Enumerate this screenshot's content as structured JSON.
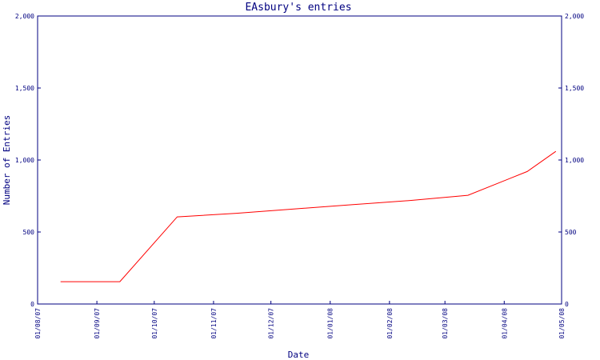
{
  "chart_data": {
    "type": "line",
    "title": "EAsbury's entries",
    "xlabel": "Date",
    "ylabel": "Number of Entries",
    "x_ticks": [
      "01/08/07",
      "01/09/07",
      "01/10/07",
      "01/11/07",
      "01/12/07",
      "01/01/08",
      "01/02/08",
      "01/03/08",
      "01/04/08",
      "01/05/08"
    ],
    "y_ticks": [
      "0",
      "500",
      "1,000",
      "1,500",
      "2,000"
    ],
    "xlim": [
      "2007-08-01",
      "2008-05-01"
    ],
    "ylim": [
      0,
      2000
    ],
    "grid": false,
    "line_color": "#ff0000",
    "axis_color": "#000080",
    "series": [
      {
        "x": [
          "2007-08-13",
          "2007-09-13",
          "2007-10-13",
          "2007-11-13",
          "2007-12-13",
          "2008-01-13",
          "2008-02-13",
          "2008-03-13",
          "2008-04-13",
          "2008-04-28"
        ],
        "values": [
          155,
          155,
          605,
          630,
          660,
          690,
          720,
          755,
          920,
          1060
        ]
      }
    ]
  }
}
